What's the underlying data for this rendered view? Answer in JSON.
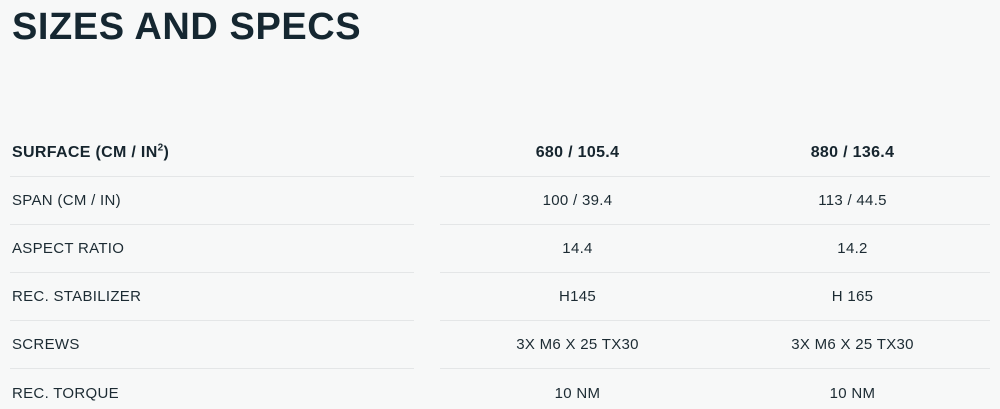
{
  "title": "SIZES AND SPECS",
  "table": {
    "header": {
      "label_main": "SURFACE (CM / IN",
      "label_sup": "2",
      "label_close": ")",
      "col1": "680 / 105.4",
      "col2": "880 / 136.4"
    },
    "rows": [
      {
        "label": "SPAN (CM / IN)",
        "col1": "100 / 39.4",
        "col2": "113 / 44.5"
      },
      {
        "label": "ASPECT RATIO",
        "col1": "14.4",
        "col2": "14.2"
      },
      {
        "label": "REC. STABILIZER",
        "col1": "H145",
        "col2": "H 165"
      },
      {
        "label": "SCREWS",
        "col1": "3X M6 X 25 TX30",
        "col2": "3X M6 X 25 TX30"
      },
      {
        "label": "REC. TORQUE",
        "col1": "10 NM",
        "col2": "10 NM"
      }
    ]
  },
  "colors": {
    "background": "#f7f8f8",
    "text": "#1c2b33",
    "divider": "#e4e6e7"
  }
}
